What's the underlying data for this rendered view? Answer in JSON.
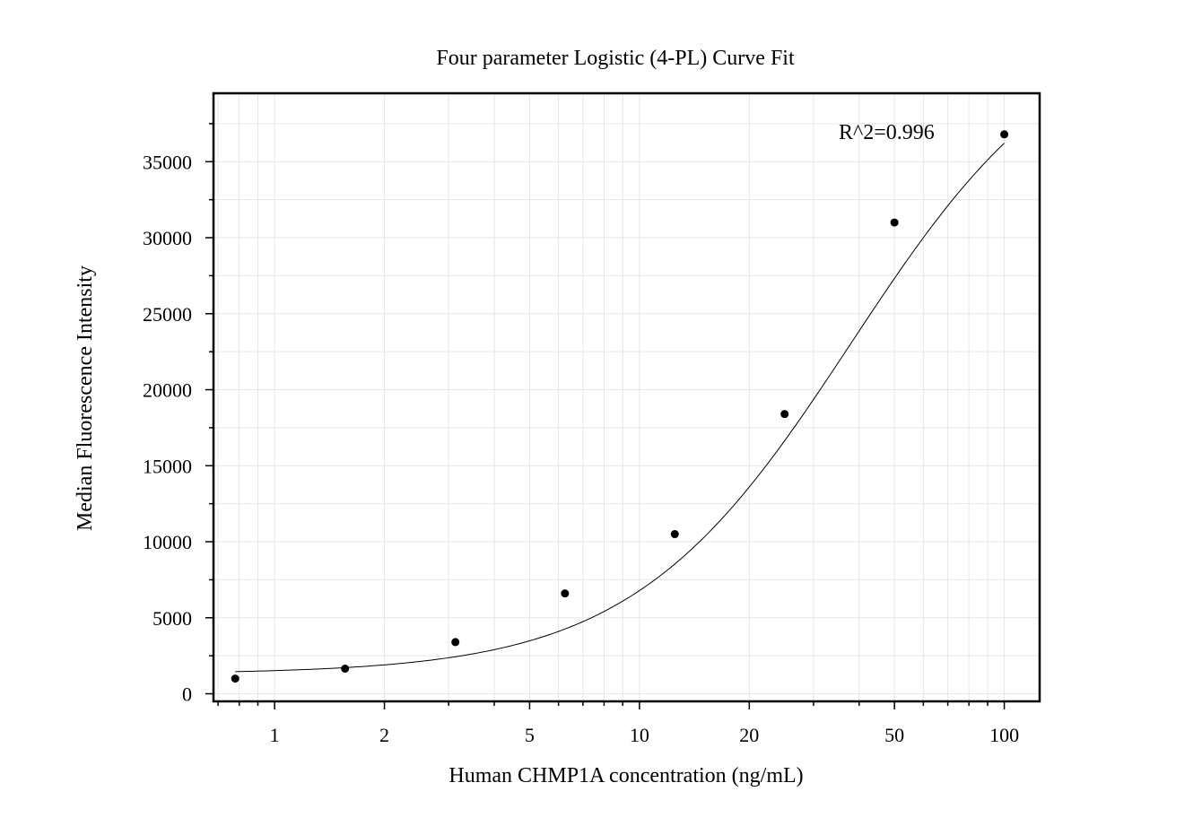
{
  "chart_data": {
    "type": "scatter",
    "title": "Four parameter Logistic (4-PL) Curve Fit",
    "xlabel": "Human CHMP1A concentration (ng/mL)",
    "ylabel": "Median Fluorescence Intensity",
    "x_scale": "log",
    "xlim": [
      0.68,
      125
    ],
    "ylim": [
      -500,
      39500
    ],
    "x_ticks": [
      1,
      2,
      5,
      10,
      20,
      50,
      100
    ],
    "x_tick_labels": [
      "1",
      "2",
      "5",
      "10",
      "20",
      "50",
      "100"
    ],
    "y_ticks": [
      0,
      5000,
      10000,
      15000,
      20000,
      25000,
      30000,
      35000
    ],
    "y_tick_labels": [
      "0",
      "5000",
      "10000",
      "15000",
      "20000",
      "25000",
      "30000",
      "35000"
    ],
    "grid": true,
    "annotation": "R^2=0.996",
    "series": [
      {
        "x": [
          0.78,
          1.56,
          3.13,
          6.25,
          12.5,
          25,
          50,
          100
        ],
        "y": [
          1000,
          1650,
          3400,
          6600,
          10500,
          18400,
          31000,
          36800
        ]
      }
    ],
    "fit": {
      "model": "4PL",
      "bottom": 1300,
      "top": 44800,
      "ec50": 38,
      "hill": 1.45,
      "x_range": [
        0.78,
        100
      ]
    }
  }
}
